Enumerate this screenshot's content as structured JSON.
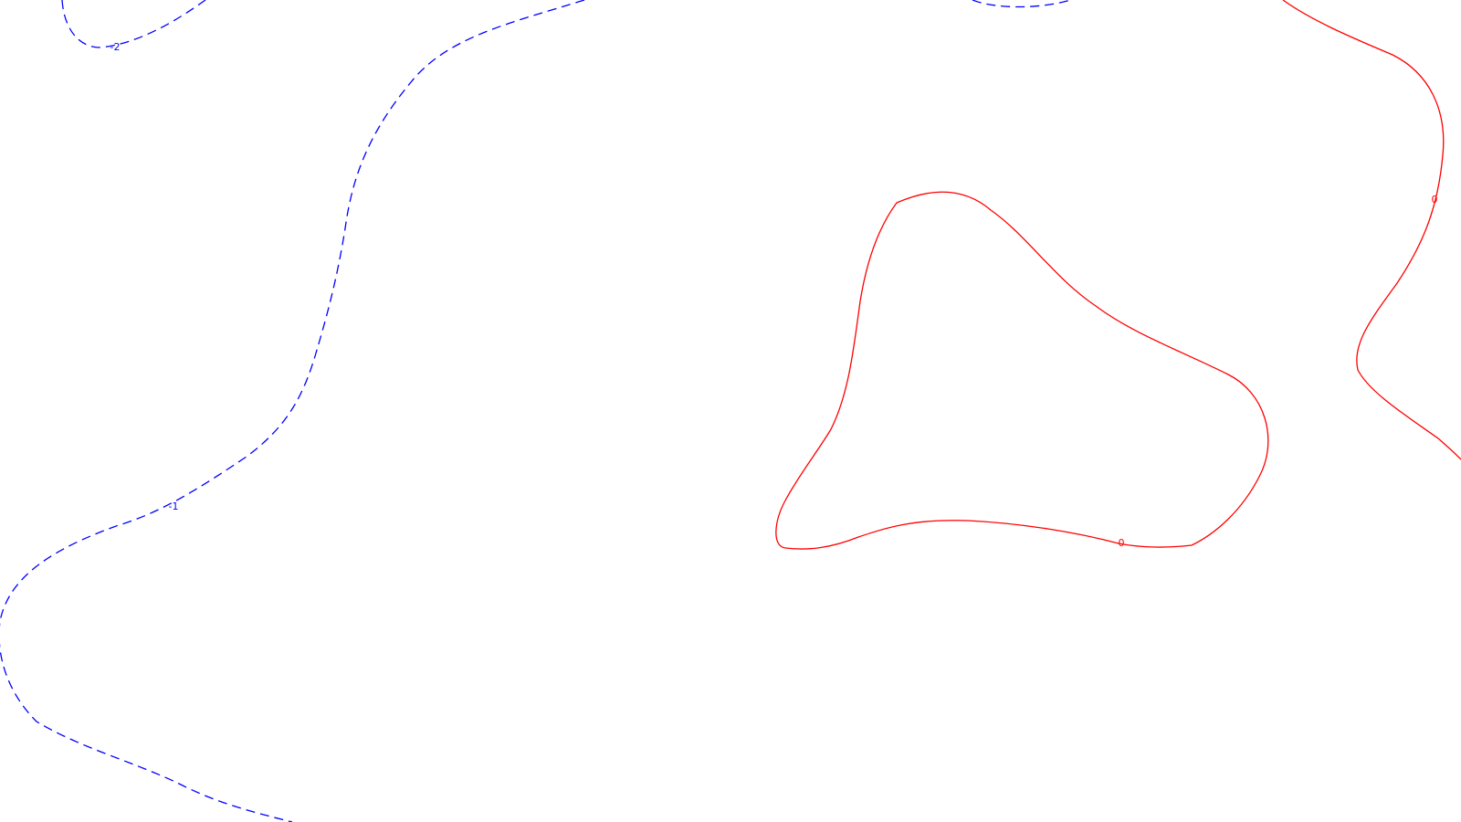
{
  "chart_data": {
    "type": "contour",
    "grid": false,
    "contours": [
      {
        "level": "-2",
        "label": "-2",
        "style": "dashed",
        "color": "#0000ff"
      },
      {
        "level": "-1",
        "label": "-1",
        "style": "dashed",
        "color": "#0000ff"
      },
      {
        "level": "-2",
        "label": "",
        "style": "dashed",
        "color": "#0000ff"
      },
      {
        "level": "0",
        "label": "0",
        "style": "solid",
        "color": "#ff0000"
      },
      {
        "level": "0",
        "label": "0",
        "style": "solid",
        "color": "#ff0000"
      }
    ]
  }
}
